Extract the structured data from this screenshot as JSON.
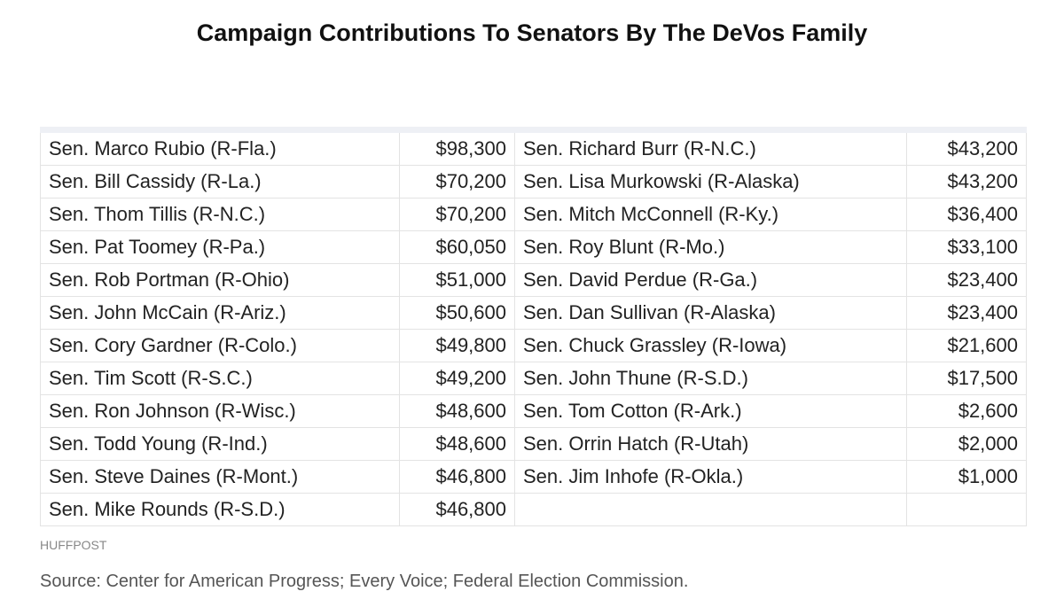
{
  "header": {
    "title": "Campaign Contributions To Senators By The DeVos Family"
  },
  "table": {
    "rows": [
      [
        "Sen. Marco Rubio (R-Fla.)",
        "$98,300",
        "Sen. Richard Burr (R-N.C.)",
        "$43,200"
      ],
      [
        "Sen. Bill Cassidy (R-La.)",
        "$70,200",
        "Sen. Lisa Murkowski (R-Alaska)",
        "$43,200"
      ],
      [
        "Sen. Thom Tillis (R-N.C.)",
        "$70,200",
        "Sen. Mitch McConnell (R-Ky.)",
        "$36,400"
      ],
      [
        "Sen. Pat Toomey (R-Pa.)",
        "$60,050",
        "Sen. Roy Blunt (R-Mo.)",
        "$33,100"
      ],
      [
        "Sen. Rob Portman (R-Ohio)",
        "$51,000",
        "Sen. David Perdue (R-Ga.)",
        "$23,400"
      ],
      [
        "Sen. John McCain (R-Ariz.)",
        "$50,600",
        "Sen. Dan Sullivan (R-Alaska)",
        "$23,400"
      ],
      [
        "Sen. Cory Gardner (R-Colo.)",
        "$49,800",
        "Sen. Chuck Grassley (R-Iowa)",
        "$21,600"
      ],
      [
        "Sen. Tim Scott (R-S.C.)",
        "$49,200",
        "Sen. John Thune (R-S.D.)",
        "$17,500"
      ],
      [
        "Sen. Ron Johnson (R-Wisc.)",
        "$48,600",
        "Sen. Tom Cotton (R-Ark.)",
        "$2,600"
      ],
      [
        "Sen. Todd Young (R-Ind.)",
        "$48,600",
        "Sen. Orrin Hatch (R-Utah)",
        "$2,000"
      ],
      [
        "Sen. Steve Daines (R-Mont.)",
        "$46,800",
        "Sen. Jim Inhofe (R-Okla.)",
        "$1,000"
      ],
      [
        "Sen. Mike Rounds (R-S.D.)",
        "$46,800"
      ]
    ]
  },
  "footer": {
    "brand": "HUFFPOST",
    "source": "Source: Center for American Progress; Every Voice; Federal Election Commission."
  }
}
